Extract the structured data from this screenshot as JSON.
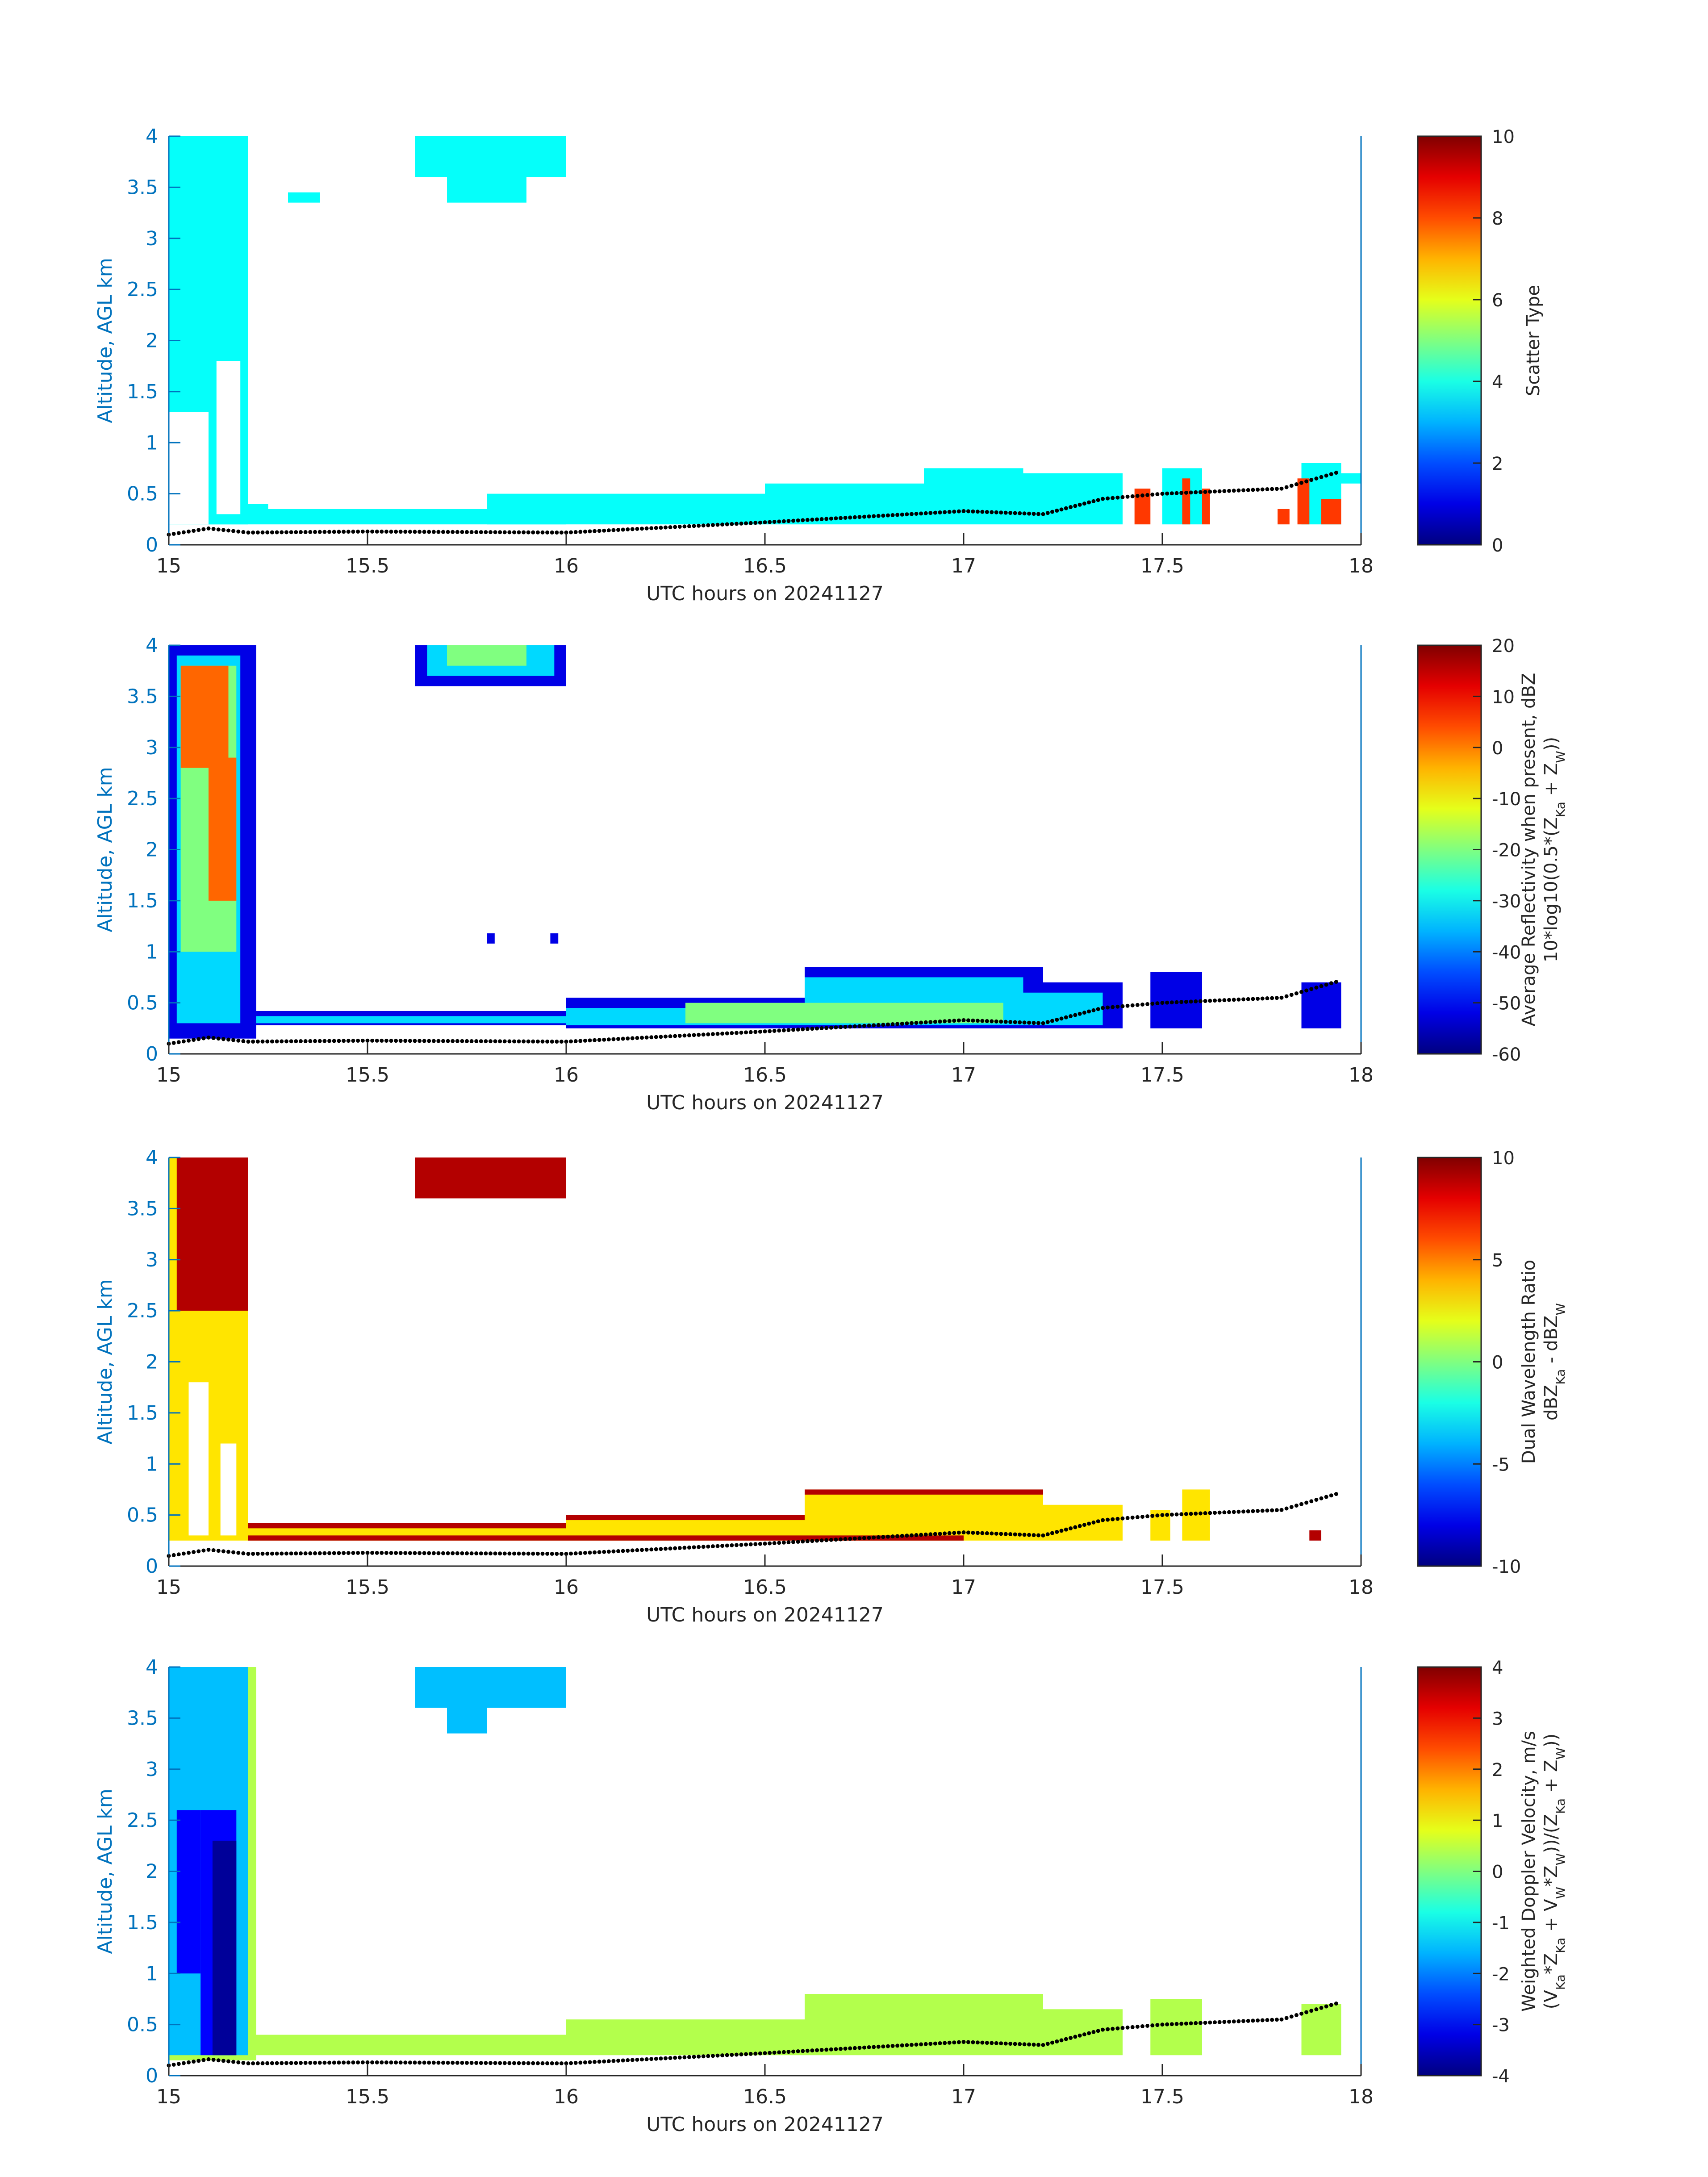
{
  "chart_data": [
    {
      "type": "heatmap",
      "xlabel": "UTC hours on 20241127",
      "ylabel": "Altitude, AGL km",
      "xlim": [
        15,
        18
      ],
      "ylim": [
        0,
        4
      ],
      "xticks": [
        "15",
        "15.5",
        "16",
        "16.5",
        "17",
        "17.5",
        "18"
      ],
      "yticks": [
        "0",
        "0.5",
        "1",
        "1.5",
        "2",
        "2.5",
        "3",
        "3.5",
        "4"
      ],
      "colorbar": {
        "label_lines": [
          "Scatter Type"
        ],
        "range": [
          0,
          10
        ],
        "ticks": [
          "0",
          "2",
          "4",
          "6",
          "8",
          "10"
        ]
      },
      "layers": [
        {
          "name": "main",
          "value": 3.8,
          "regions": [
            [
              15.0,
              15.2,
              0.2,
              4.0
            ],
            [
              15.1,
              15.2,
              0.2,
              4.0
            ],
            [
              15.2,
              15.25,
              0.2,
              0.4
            ],
            [
              15.25,
              16.0,
              0.2,
              0.35
            ],
            [
              15.62,
              16.0,
              3.6,
              4.0
            ],
            [
              15.7,
              15.9,
              3.35,
              3.6
            ],
            [
              15.3,
              15.38,
              3.35,
              3.45
            ],
            [
              15.8,
              16.1,
              0.2,
              0.5
            ],
            [
              16.1,
              16.5,
              0.2,
              0.5
            ],
            [
              16.5,
              16.9,
              0.2,
              0.6
            ],
            [
              16.9,
              17.15,
              0.2,
              0.75
            ],
            [
              17.15,
              17.4,
              0.2,
              0.7
            ],
            [
              17.5,
              17.6,
              0.2,
              0.75
            ],
            [
              17.85,
              17.95,
              0.2,
              0.8
            ],
            [
              17.95,
              18.0,
              0.6,
              0.7
            ]
          ]
        },
        {
          "name": "gap",
          "value": null,
          "regions": [
            [
              15.0,
              15.1,
              0.2,
              1.3
            ],
            [
              15.12,
              15.18,
              0.3,
              1.8
            ]
          ]
        },
        {
          "name": "cells",
          "value": 8.2,
          "regions": [
            [
              17.43,
              17.47,
              0.2,
              0.55
            ],
            [
              17.55,
              17.57,
              0.2,
              0.65
            ],
            [
              17.6,
              17.62,
              0.2,
              0.55
            ],
            [
              17.79,
              17.82,
              0.2,
              0.35
            ],
            [
              17.84,
              17.87,
              0.2,
              0.65
            ],
            [
              17.9,
              17.95,
              0.2,
              0.45
            ]
          ]
        }
      ],
      "surface": {
        "x": [
          15.0,
          15.1,
          15.2,
          15.5,
          16.0,
          16.5,
          17.0,
          17.2,
          17.35,
          17.5,
          17.8,
          17.95
        ],
        "y": [
          0.1,
          0.16,
          0.12,
          0.13,
          0.12,
          0.22,
          0.33,
          0.3,
          0.45,
          0.5,
          0.55,
          0.72
        ]
      }
    },
    {
      "type": "heatmap",
      "xlabel": "UTC hours on 20241127",
      "ylabel": "Altitude, AGL km",
      "xlim": [
        15,
        18
      ],
      "ylim": [
        0,
        4
      ],
      "xticks": [
        "15",
        "15.5",
        "16",
        "16.5",
        "17",
        "17.5",
        "18"
      ],
      "yticks": [
        "0",
        "0.5",
        "1",
        "1.5",
        "2",
        "2.5",
        "3",
        "3.5",
        "4"
      ],
      "colorbar": {
        "label_lines": [
          "Average Reflectivity when present, dBZ",
          "10*log10(0.5*(Z",
          "Ka",
          " + Z",
          "W",
          "))"
        ],
        "range": [
          -60,
          20
        ],
        "ticks": [
          "-60",
          "-50",
          "-40",
          "-30",
          "-20",
          "-10",
          "0",
          "10",
          "20"
        ]
      },
      "layers": [
        {
          "name": "edge",
          "value": -52,
          "regions": [
            [
              15.0,
              15.22,
              0.15,
              4.0
            ],
            [
              15.22,
              16.0,
              0.28,
              0.42
            ],
            [
              16.0,
              16.6,
              0.25,
              0.55
            ],
            [
              16.6,
              17.2,
              0.25,
              0.85
            ],
            [
              17.2,
              17.4,
              0.25,
              0.7
            ],
            [
              15.62,
              16.0,
              3.6,
              4.0
            ],
            [
              17.47,
              17.6,
              0.25,
              0.8
            ],
            [
              17.85,
              17.95,
              0.25,
              0.7
            ],
            [
              15.8,
              15.82,
              1.08,
              1.18
            ],
            [
              15.96,
              15.98,
              1.08,
              1.18
            ]
          ]
        },
        {
          "name": "mid",
          "value": -33,
          "regions": [
            [
              15.02,
              15.18,
              0.3,
              3.9
            ],
            [
              15.22,
              16.0,
              0.3,
              0.37
            ],
            [
              16.0,
              16.6,
              0.28,
              0.45
            ],
            [
              16.6,
              17.15,
              0.28,
              0.75
            ],
            [
              17.15,
              17.35,
              0.28,
              0.6
            ],
            [
              15.65,
              15.97,
              3.7,
              4.0
            ]
          ]
        },
        {
          "name": "core",
          "value": -20,
          "regions": [
            [
              15.03,
              15.17,
              1.0,
              3.8
            ],
            [
              16.3,
              17.1,
              0.3,
              0.5
            ],
            [
              15.7,
              15.9,
              3.8,
              4.0
            ]
          ]
        },
        {
          "name": "peak",
          "value": 2,
          "regions": [
            [
              15.03,
              15.15,
              2.8,
              3.8
            ],
            [
              15.1,
              15.17,
              1.5,
              2.9
            ]
          ]
        }
      ],
      "surface": {
        "x": [
          15.0,
          15.1,
          15.2,
          15.5,
          16.0,
          16.5,
          17.0,
          17.2,
          17.35,
          17.5,
          17.8,
          17.95
        ],
        "y": [
          0.1,
          0.16,
          0.12,
          0.13,
          0.12,
          0.22,
          0.33,
          0.3,
          0.45,
          0.5,
          0.55,
          0.72
        ]
      }
    },
    {
      "type": "heatmap",
      "xlabel": "UTC hours on 20241127",
      "ylabel": "Altitude, AGL km",
      "xlim": [
        15,
        18
      ],
      "ylim": [
        0,
        4
      ],
      "xticks": [
        "15",
        "15.5",
        "16",
        "16.5",
        "17",
        "17.5",
        "18"
      ],
      "yticks": [
        "0",
        "0.5",
        "1",
        "1.5",
        "2",
        "2.5",
        "3",
        "3.5",
        "4"
      ],
      "colorbar": {
        "label_lines": [
          "Dual Wavelength Ratio",
          "dBZ",
          "Ka",
          " - dBZ",
          "W"
        ],
        "range": [
          -10,
          10
        ],
        "ticks": [
          "-10",
          "-5",
          "0",
          "5",
          "10"
        ]
      },
      "layers": [
        {
          "name": "base",
          "value": 3.0,
          "regions": [
            [
              15.0,
              15.2,
              0.25,
              4.0
            ],
            [
              15.2,
              16.0,
              0.25,
              0.42
            ],
            [
              16.0,
              16.6,
              0.25,
              0.5
            ],
            [
              16.6,
              17.2,
              0.25,
              0.75
            ],
            [
              17.2,
              17.4,
              0.25,
              0.6
            ],
            [
              15.62,
              16.0,
              3.6,
              4.0
            ],
            [
              17.47,
              17.52,
              0.25,
              0.55
            ],
            [
              17.55,
              17.62,
              0.25,
              0.75
            ]
          ]
        },
        {
          "name": "gap",
          "value": null,
          "regions": [
            [
              15.05,
              15.1,
              0.3,
              1.8
            ],
            [
              15.13,
              15.17,
              0.3,
              1.2
            ]
          ]
        },
        {
          "name": "top",
          "value": 9.0,
          "regions": [
            [
              15.2,
              16.0,
              0.37,
              0.42
            ],
            [
              16.0,
              16.6,
              0.45,
              0.5
            ],
            [
              16.6,
              17.2,
              0.7,
              0.75
            ],
            [
              15.62,
              16.0,
              3.6,
              4.0
            ],
            [
              15.02,
              15.2,
              2.5,
              4.0
            ],
            [
              15.2,
              17.0,
              0.25,
              0.3
            ],
            [
              17.87,
              17.9,
              0.25,
              0.35
            ]
          ]
        }
      ],
      "surface": {
        "x": [
          15.0,
          15.1,
          15.2,
          15.5,
          16.0,
          16.5,
          17.0,
          17.2,
          17.35,
          17.5,
          17.8,
          17.95
        ],
        "y": [
          0.1,
          0.16,
          0.12,
          0.13,
          0.12,
          0.22,
          0.33,
          0.3,
          0.45,
          0.5,
          0.55,
          0.72
        ]
      }
    },
    {
      "type": "heatmap",
      "xlabel": "UTC hours on 20241127",
      "ylabel": "Altitude, AGL km",
      "xlim": [
        15,
        18
      ],
      "ylim": [
        0,
        4
      ],
      "xticks": [
        "15",
        "15.5",
        "16",
        "16.5",
        "17",
        "17.5",
        "18"
      ],
      "yticks": [
        "0",
        "0.5",
        "1",
        "1.5",
        "2",
        "2.5",
        "3",
        "3.5",
        "4"
      ],
      "colorbar": {
        "label_lines": [
          "Weighted Doppler Velocity, m/s",
          "(V",
          "Ka",
          "*Z",
          "Ka",
          " + V",
          "W",
          "*Z",
          "W",
          "))/(Z",
          "Ka",
          " + Z",
          "W",
          "))"
        ],
        "range": [
          -4,
          4
        ],
        "ticks": [
          "-4",
          "-3",
          "-2",
          "-1",
          "0",
          "1",
          "2",
          "3",
          "4"
        ]
      },
      "layers": [
        {
          "name": "base",
          "value": 0.4,
          "regions": [
            [
              15.0,
              15.22,
              0.15,
              4.0
            ],
            [
              15.2,
              16.0,
              0.2,
              0.4
            ],
            [
              16.0,
              16.6,
              0.2,
              0.55
            ],
            [
              16.6,
              17.2,
              0.2,
              0.8
            ],
            [
              17.2,
              17.4,
              0.2,
              0.65
            ],
            [
              15.62,
              16.0,
              3.6,
              4.0
            ],
            [
              17.47,
              17.6,
              0.2,
              0.75
            ],
            [
              17.85,
              17.95,
              0.2,
              0.7
            ]
          ]
        },
        {
          "name": "cloud",
          "value": -1.5,
          "regions": [
            [
              15.0,
              15.2,
              0.2,
              4.0
            ],
            [
              15.62,
              16.0,
              3.6,
              4.0
            ],
            [
              15.7,
              15.8,
              3.35,
              3.6
            ]
          ]
        },
        {
          "name": "fall",
          "value": -3.0,
          "regions": [
            [
              15.02,
              15.08,
              1.0,
              2.6
            ],
            [
              15.08,
              15.17,
              0.2,
              2.6
            ]
          ]
        },
        {
          "name": "core",
          "value": -3.8,
          "regions": [
            [
              15.11,
              15.17,
              0.2,
              2.3
            ]
          ]
        }
      ],
      "surface": {
        "x": [
          15.0,
          15.1,
          15.2,
          15.5,
          16.0,
          16.5,
          17.0,
          17.2,
          17.35,
          17.5,
          17.8,
          17.95
        ],
        "y": [
          0.1,
          0.16,
          0.12,
          0.13,
          0.12,
          0.22,
          0.33,
          0.3,
          0.45,
          0.5,
          0.55,
          0.72
        ]
      }
    }
  ],
  "colors": {
    "axis": "#0072BD",
    "text": "#262626",
    "surface_dots": "#000000"
  }
}
